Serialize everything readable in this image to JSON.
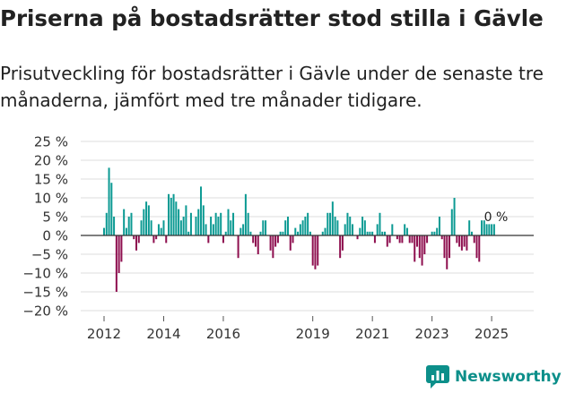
{
  "chart_data": {
    "type": "bar",
    "title": "Priserna på bostadsrätter stod stilla i Gävle",
    "subtitle": "Prisutveckling för bostadsrätter i Gävle under de senaste tre månaderna, jämfört med tre månader tidigare.",
    "xlabel": "",
    "ylabel": "",
    "ylim": [
      -20,
      25
    ],
    "y_ticks": [
      {
        "value": 25,
        "label": "25 %"
      },
      {
        "value": 20,
        "label": "20 %"
      },
      {
        "value": 15,
        "label": "15 %"
      },
      {
        "value": 10,
        "label": "10 %"
      },
      {
        "value": 5,
        "label": "5 %"
      },
      {
        "value": 0,
        "label": "0 %"
      },
      {
        "value": -5,
        "label": "−5 %"
      },
      {
        "value": -10,
        "label": "−10 %"
      },
      {
        "value": -15,
        "label": "−15 %"
      },
      {
        "value": -20,
        "label": "−20 %"
      }
    ],
    "x_ticks": [
      {
        "index": 0,
        "label": "2012"
      },
      {
        "index": 24,
        "label": "2014"
      },
      {
        "index": 48,
        "label": "2016"
      },
      {
        "index": 84,
        "label": "2019"
      },
      {
        "index": 108,
        "label": "2021"
      },
      {
        "index": 132,
        "label": "2023"
      },
      {
        "index": 156,
        "label": "2025"
      }
    ],
    "grid": true,
    "colors": {
      "positive": "#0c9a93",
      "negative": "#8e0f4f",
      "grid": "#dddddd",
      "zero_line": "#333333"
    },
    "last_label": "0 %",
    "values": [
      2,
      6,
      18,
      14,
      5,
      -15,
      -10,
      -7,
      7,
      2,
      5,
      6,
      -1,
      -4,
      -2,
      4,
      7,
      9,
      8,
      4,
      -2,
      -1,
      3,
      2,
      4,
      -2,
      11,
      10,
      11,
      9,
      7,
      4,
      5,
      8,
      1,
      6,
      0,
      5,
      7,
      13,
      8,
      3,
      -2,
      5,
      3,
      6,
      5,
      6,
      -2,
      1,
      7,
      4,
      6,
      0,
      -6,
      2,
      3,
      11,
      6,
      1,
      -2,
      -3,
      -5,
      1,
      4,
      4,
      0,
      -4,
      -6,
      -3,
      -2,
      1,
      1,
      4,
      5,
      -4,
      -2,
      2,
      1,
      3,
      4,
      5,
      6,
      1,
      -8,
      -9,
      -8,
      0,
      1,
      2,
      6,
      6,
      9,
      5,
      4,
      -6,
      -4,
      3,
      6,
      5,
      3,
      0,
      -1,
      2,
      5,
      4,
      1,
      1,
      1,
      -2,
      3,
      6,
      1,
      1,
      -3,
      -2,
      3,
      0,
      -1,
      -2,
      -2,
      3,
      2,
      -2,
      -2,
      -7,
      -3,
      -6,
      -8,
      -5,
      -2,
      0,
      1,
      1,
      2,
      5,
      -1,
      -6,
      -9,
      -6,
      7,
      10,
      -2,
      -3,
      -4,
      -3,
      -4,
      4,
      1,
      -2,
      -6,
      -7,
      4,
      4,
      3,
      3,
      3,
      3,
      0
    ]
  },
  "brand": {
    "name": "Newsworthy",
    "icon": "bar-chart-icon",
    "color": "#0c8f8a"
  }
}
